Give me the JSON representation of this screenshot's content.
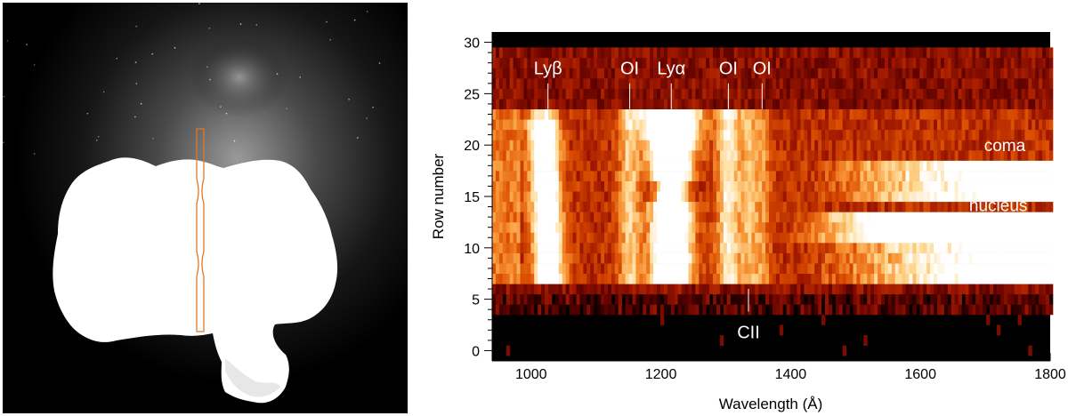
{
  "chart_data": [
    {
      "type": "image",
      "name": "comet nucleus image",
      "colors": {
        "background": "#000000",
        "nucleus": "#ffffff",
        "slit_outline": "#e07828"
      }
    },
    {
      "type": "heatmap",
      "xlabel": "Wavelength (Å)",
      "ylabel": "Row number",
      "xlim": [
        940,
        1800
      ],
      "ylim": [
        -1,
        31
      ],
      "x_ticks": [
        1000,
        1200,
        1400,
        1600,
        1800
      ],
      "x_tick_labels": [
        "1000",
        "1200",
        "1400",
        "1600",
        "1800"
      ],
      "y_ticks": [
        0,
        5,
        10,
        15,
        20,
        25,
        30
      ],
      "y_tick_labels": [
        "0",
        "5",
        "10",
        "15",
        "20",
        "25",
        "30"
      ],
      "colormap": [
        "#000000",
        "#5a0000",
        "#a01800",
        "#d84a00",
        "#f79030",
        "#ffd890",
        "#ffffff"
      ],
      "emission_lines": [
        {
          "label": "Lyβ",
          "wavelength": 1026,
          "tick_rows": [
            23.5,
            26
          ],
          "label_row": 27.5,
          "label_pos": "above"
        },
        {
          "label": "OI",
          "wavelength": 1152,
          "tick_rows": [
            23.5,
            26
          ],
          "label_row": 27.5,
          "label_pos": "above"
        },
        {
          "label": "Lyα",
          "wavelength": 1216,
          "tick_rows": [
            23.5,
            26
          ],
          "label_row": 27.5,
          "label_pos": "above"
        },
        {
          "label": "OI",
          "wavelength": 1304,
          "tick_rows": [
            23.5,
            26
          ],
          "label_row": 27.5,
          "label_pos": "above"
        },
        {
          "label": "OI",
          "wavelength": 1356,
          "tick_rows": [
            23.5,
            26
          ],
          "label_row": 27.5,
          "label_pos": "above"
        },
        {
          "label": "CII",
          "wavelength": 1335,
          "tick_rows": [
            3.8,
            6
          ],
          "label_row": 1.8,
          "label_pos": "below"
        }
      ],
      "region_labels": [
        {
          "label": "coma",
          "wavelength": 1730,
          "row": 20
        },
        {
          "label": "nucleus",
          "wavelength": 1720,
          "row": 14.2
        }
      ]
    }
  ]
}
